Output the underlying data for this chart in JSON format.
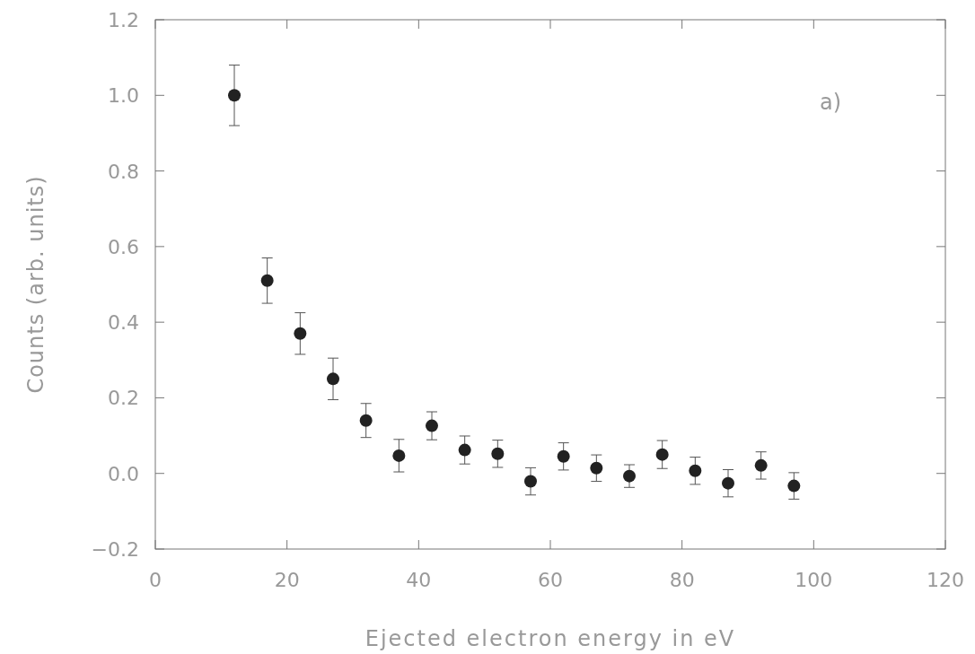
{
  "chart_data": {
    "type": "scatter",
    "xlabel": "Ejected electron energy in eV",
    "ylabel": "Counts (arb. units)",
    "annotations": [
      "a)"
    ],
    "xlim": [
      0,
      120
    ],
    "xticks": [
      0,
      20,
      40,
      60,
      80,
      100,
      120
    ],
    "ylim": [
      -0.2,
      1.2
    ],
    "yticks": [
      {
        "value": -0.2,
        "label": "−0.2"
      },
      {
        "value": 0,
        "label": "0.0"
      },
      {
        "value": 0.2,
        "label": "0.2"
      },
      {
        "value": 0.4,
        "label": "0.4"
      },
      {
        "value": 0.6,
        "label": "0.6"
      },
      {
        "value": 0.8,
        "label": "0.8"
      },
      {
        "value": 1,
        "label": "1.0"
      },
      {
        "value": 1.2,
        "label": "1.2"
      }
    ],
    "grid": false,
    "marker": "circle",
    "series": [
      {
        "color": "#222222",
        "x": [
          12,
          17,
          22,
          27,
          32,
          37,
          42,
          47,
          52,
          57,
          62,
          67,
          72,
          77,
          82,
          87,
          92,
          97
        ],
        "values": [
          1.0,
          0.51,
          0.37,
          0.25,
          0.14,
          0.047,
          0.126,
          0.062,
          0.052,
          -0.021,
          0.045,
          0.014,
          -0.007,
          0.05,
          0.007,
          -0.026,
          0.021,
          -0.033
        ],
        "errors": [
          0.08,
          0.06,
          0.055,
          0.055,
          0.045,
          0.043,
          0.037,
          0.037,
          0.036,
          0.036,
          0.036,
          0.035,
          0.03,
          0.037,
          0.036,
          0.036,
          0.036,
          0.035
        ]
      }
    ]
  }
}
